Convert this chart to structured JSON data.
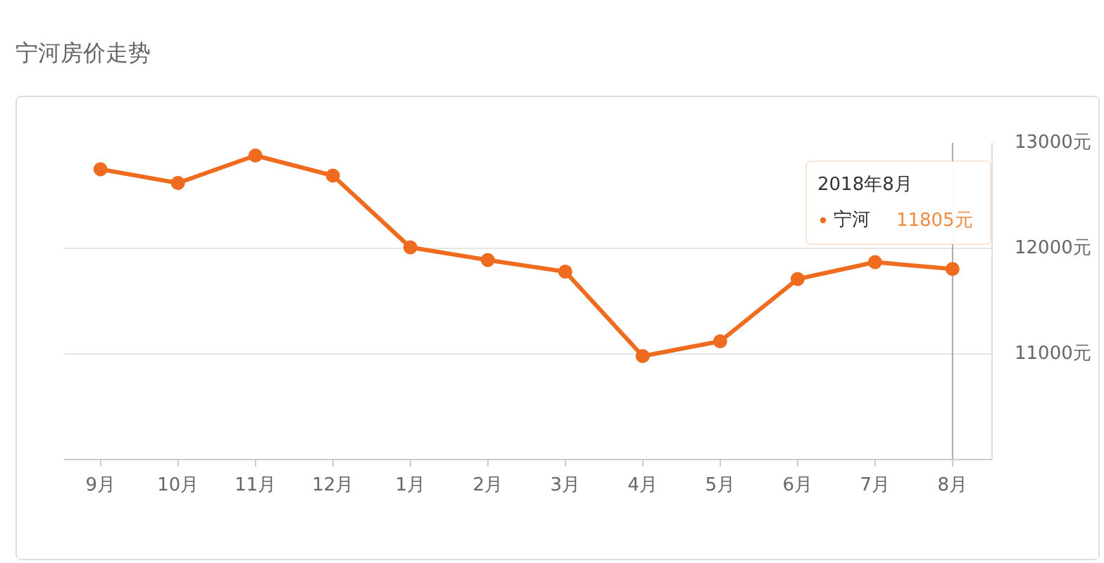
{
  "chart_data": {
    "type": "line",
    "title": "宁河房价走势",
    "categories": [
      "9月",
      "10月",
      "11月",
      "12月",
      "1月",
      "2月",
      "3月",
      "4月",
      "5月",
      "6月",
      "7月",
      "8月"
    ],
    "series": [
      {
        "name": "宁河",
        "color": "#ef6b1f",
        "values": [
          12750,
          12620,
          12880,
          12690,
          12010,
          11890,
          11780,
          10980,
          11120,
          11710,
          11870,
          11805
        ],
        "value_labels": [
          null,
          null,
          null,
          null,
          null,
          null,
          null,
          null,
          null,
          null,
          null,
          "11805元"
        ]
      }
    ],
    "ylim": [
      10000,
      13000
    ],
    "yticks": [
      {
        "value": 11000,
        "label": "11000元"
      },
      {
        "value": 12000,
        "label": "12000元"
      },
      {
        "value": 13000,
        "label": "13000元"
      }
    ],
    "grid": "y",
    "marker": "circle",
    "line_style": "solid",
    "legend": "top right",
    "annotations": [
      "2018年8月"
    ],
    "ref_lines": [
      {
        "axis": "x",
        "value": "8月",
        "color": "#aaaaaa"
      }
    ]
  }
}
